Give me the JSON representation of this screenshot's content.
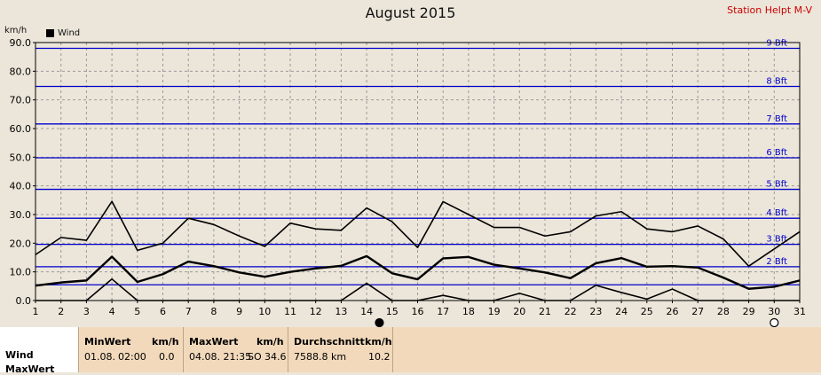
{
  "header": {
    "title": "August 2015",
    "station": "Station Helpt M-V",
    "unit": "km/h",
    "legend": "Wind"
  },
  "chart_data": {
    "type": "line",
    "title": "August 2015",
    "ylabel": "km/h",
    "ylim": [
      0,
      90
    ],
    "yticks": [
      "0.0",
      "10.0",
      "20.0",
      "30.0",
      "40.0",
      "50.0",
      "60.0",
      "70.0",
      "80.0",
      "90.0"
    ],
    "x": [
      1,
      2,
      3,
      4,
      5,
      6,
      7,
      8,
      9,
      10,
      11,
      12,
      13,
      14,
      15,
      16,
      17,
      18,
      19,
      20,
      21,
      22,
      23,
      24,
      25,
      26,
      27,
      28,
      29,
      30,
      31
    ],
    "grid": true,
    "series": [
      {
        "name": "Wind",
        "values": [
          5.2,
          6.3,
          7.0,
          15.3,
          6.5,
          9.2,
          13.6,
          12.0,
          9.8,
          8.3,
          10.0,
          11.2,
          12.1,
          15.5,
          9.5,
          7.4,
          14.7,
          15.2,
          12.5,
          11.2,
          9.8,
          7.8,
          13.0,
          14.8,
          11.8,
          12.0,
          11.5,
          8.0,
          4.1,
          4.8,
          7.0
        ]
      },
      {
        "values": [
          16.0,
          22.0,
          21.0,
          34.6,
          17.5,
          20.0,
          28.7,
          26.5,
          22.5,
          18.9,
          27.0,
          25.0,
          24.5,
          32.3,
          27.5,
          18.5,
          34.5,
          30.0,
          25.5,
          25.5,
          22.5,
          24.0,
          29.5,
          31.0,
          25.0,
          24.0,
          26.0,
          21.5,
          12.0,
          18.0,
          24.0
        ]
      },
      {
        "values": [
          0.0,
          0.0,
          0.0,
          7.5,
          0.0,
          0.0,
          0.0,
          0.0,
          0.0,
          0.0,
          0.0,
          0.0,
          0.0,
          6.0,
          0.0,
          0.0,
          1.8,
          0.0,
          0.0,
          2.5,
          0.0,
          0.0,
          5.3,
          2.8,
          0.5,
          4.0,
          0.0,
          0.0,
          0.0,
          0.0,
          0.0
        ]
      }
    ],
    "beaufort_lines": [
      {
        "label": "",
        "value": 5.5
      },
      {
        "label": "2 Bft",
        "value": 11.8
      },
      {
        "label": "3 Bft",
        "value": 19.6
      },
      {
        "label": "4 Bft",
        "value": 28.7
      },
      {
        "label": "5 Bft",
        "value": 38.8
      },
      {
        "label": "6 Bft",
        "value": 49.8
      },
      {
        "label": "7 Bft",
        "value": 61.6
      },
      {
        "label": "8 Bft",
        "value": 74.7
      },
      {
        "label": "9 Bft",
        "value": 88.0
      }
    ],
    "moon_phases": [
      {
        "day": 14.5,
        "phase": "new-moon"
      },
      {
        "day": 30,
        "phase": "full-moon"
      }
    ]
  },
  "footer": {
    "rows": [
      "Wind",
      "MaxWert"
    ],
    "min": {
      "header": "MinWert",
      "unit": "km/h",
      "date": "01.08.",
      "time": "02:00",
      "value": "0.0"
    },
    "max": {
      "header": "MaxWert",
      "unit": "km/h",
      "datetime": "04.08. 21:35",
      "dir": "SO",
      "value": "34.6"
    },
    "avg": {
      "header": "Durchschnitt",
      "unit": "km/h",
      "distance": "7588.8 km",
      "value": "10.2"
    }
  },
  "colors": {
    "background": "#ece6da",
    "grid": "#9a9a9a",
    "beaufort": "#0000cc",
    "series": "#000000",
    "station": "#cc0000",
    "footer": "#f2d9bb"
  }
}
